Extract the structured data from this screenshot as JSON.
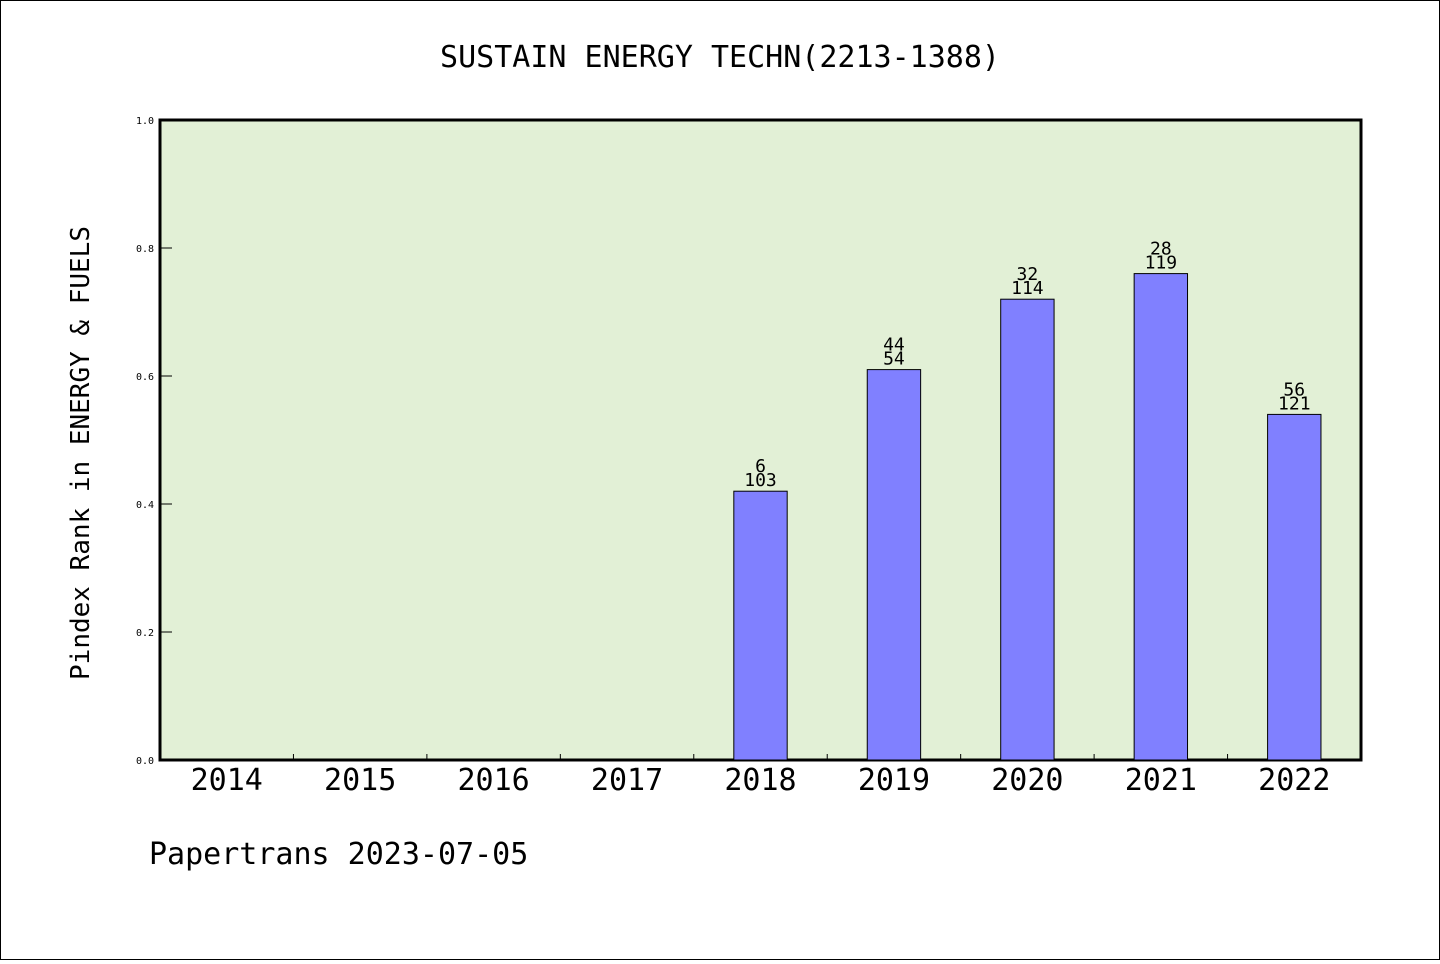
{
  "chart_data": {
    "type": "bar",
    "title": "SUSTAIN ENERGY TECHN(2213-1388)",
    "ylabel": "Pindex Rank in ENERGY & FUELS",
    "xlabel": "",
    "categories": [
      "2014",
      "2015",
      "2016",
      "2017",
      "2018",
      "2019",
      "2020",
      "2021",
      "2022"
    ],
    "values": [
      null,
      null,
      null,
      null,
      0.42,
      0.61,
      0.72,
      0.76,
      0.54
    ],
    "bar_labels_top": [
      null,
      null,
      null,
      null,
      "6",
      "44",
      "32",
      "28",
      "56"
    ],
    "bar_labels_bottom": [
      null,
      null,
      null,
      null,
      "103",
      "54",
      "114",
      "119",
      "121"
    ],
    "ylim": [
      0,
      1.0
    ],
    "yticks": [
      "0.0",
      "0.2",
      "0.4",
      "0.6",
      "0.8",
      "1.0"
    ],
    "grid": false,
    "colors": {
      "bar": "#8080ff",
      "plot_bg": "#e2f0d6",
      "axis": "#000000"
    }
  },
  "footer": "Papertrans 2023-07-05"
}
